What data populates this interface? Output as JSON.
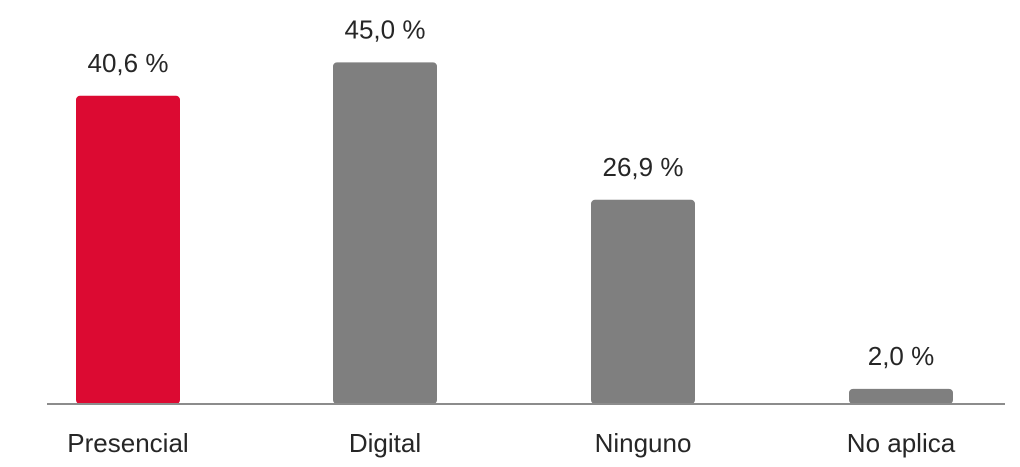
{
  "chart_data": {
    "type": "bar",
    "categories": [
      "Presencial",
      "Digital",
      "Ninguno",
      "No aplica"
    ],
    "values": [
      40.6,
      45.0,
      26.9,
      2.0
    ],
    "value_labels": [
      "40,6 %",
      "45,0 %",
      "26,9 %",
      "2,0 %"
    ],
    "bar_colors": [
      "#DC0A32",
      "#7F7F7F",
      "#7F7F7F",
      "#7F7F7F"
    ],
    "axis_color": "#8C8C8C",
    "text_color": "#262626",
    "title": "",
    "xlabel": "",
    "ylabel": "",
    "ylim": [
      0,
      46.5
    ],
    "grid": false,
    "legend": "none"
  }
}
